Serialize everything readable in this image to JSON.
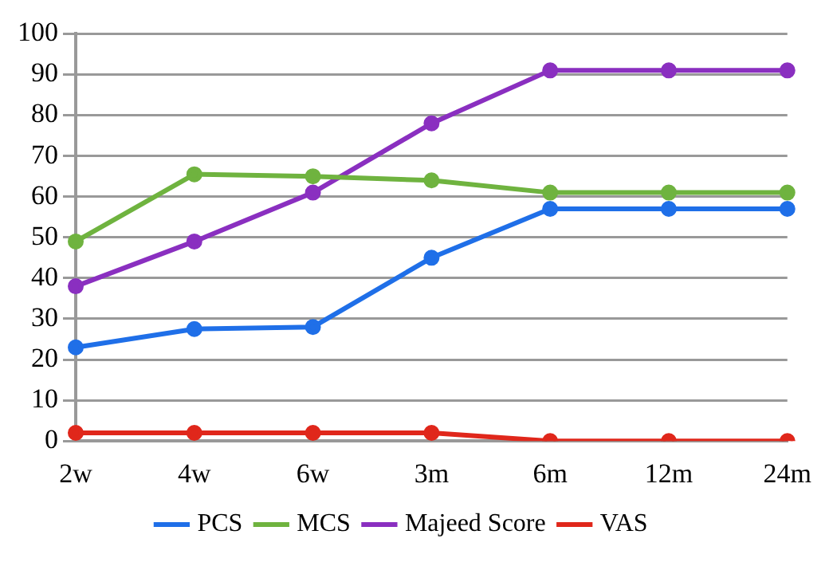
{
  "chart_data": {
    "type": "line",
    "categories": [
      "2w",
      "4w",
      "6w",
      "3m",
      "6m",
      "12m",
      "24m"
    ],
    "series": [
      {
        "name": "PCS",
        "color": "#1f6fe8",
        "values": [
          23,
          27.5,
          28,
          45,
          57,
          57,
          57
        ]
      },
      {
        "name": "MCS",
        "color": "#6fb33f",
        "values": [
          49,
          65.5,
          65,
          64,
          61,
          61,
          61
        ]
      },
      {
        "name": "Majeed Score",
        "color": "#8a2fc0",
        "values": [
          38,
          49,
          61,
          78,
          91,
          91,
          91
        ]
      },
      {
        "name": "VAS",
        "color": "#e0271b",
        "values": [
          2,
          2,
          2,
          2,
          0,
          0,
          0
        ]
      }
    ],
    "ylim": [
      0,
      100
    ],
    "yticks": [
      0,
      10,
      20,
      30,
      40,
      50,
      60,
      70,
      80,
      90,
      100
    ],
    "grid": "y",
    "legend": "bottom",
    "marker": "circle",
    "line_style": "solid"
  }
}
